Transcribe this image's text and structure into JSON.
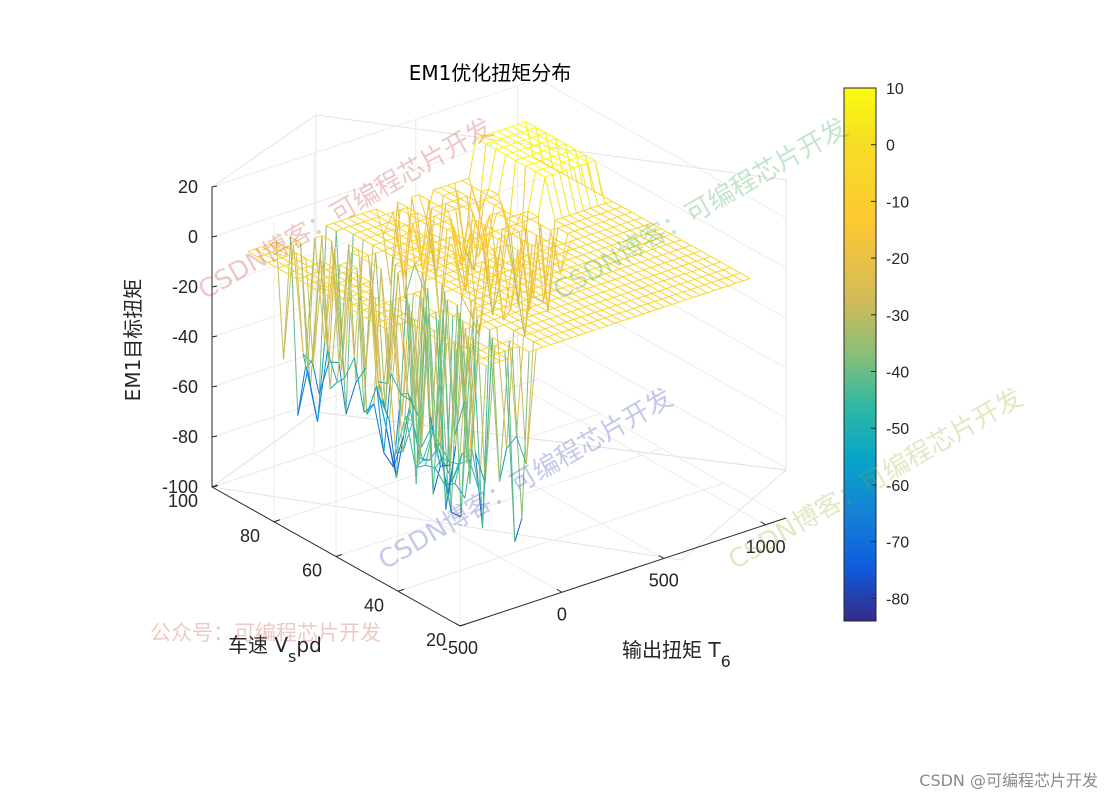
{
  "chart_data": {
    "type": "surface",
    "title": "EM1优化扭矩分布",
    "xlabel": "输出扭矩 T",
    "xlabel_sub": "6",
    "ylabel": "车速 V",
    "ylabel_sub": "s",
    "ylabel_suffix": "pd",
    "zlabel": "EM1目标扭矩",
    "xlim": [
      -500,
      1100
    ],
    "ylim": [
      20,
      100
    ],
    "zlim": [
      -100,
      20
    ],
    "xticks": [
      "-500",
      "0",
      "500",
      "1000"
    ],
    "yticks": [
      "20",
      "40",
      "60",
      "80",
      "100"
    ],
    "zticks": [
      "-100",
      "-80",
      "-60",
      "-40",
      "-20",
      "0",
      "20"
    ],
    "colorbar": {
      "limits": [
        -84,
        10
      ],
      "ticks": [
        "10",
        "0",
        "-10",
        "-20",
        "-30",
        "-40",
        "-50",
        "-60",
        "-70",
        "-80"
      ],
      "colormap": "parula"
    },
    "grid": true,
    "surface_description": {
      "regen_region_x": [
        -500,
        0
      ],
      "plateau_value": -5,
      "positive_region_value": 10,
      "min_value": -84
    }
  },
  "watermarks": [
    "CSDN博客：可编程芯片开发",
    "公众号：可编程芯片开发"
  ],
  "corner_credit": "CSDN @可编程芯片开发"
}
